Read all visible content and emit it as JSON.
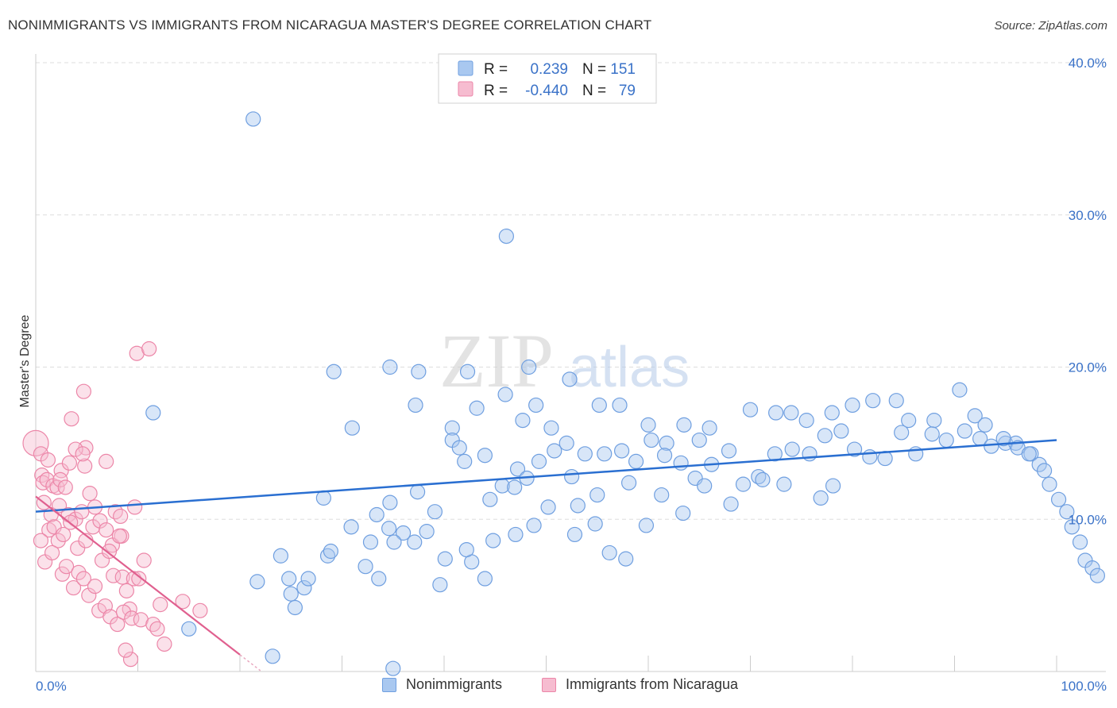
{
  "title": "NONIMMIGRANTS VS IMMIGRANTS FROM NICARAGUA MASTER'S DEGREE CORRELATION CHART",
  "source": "Source: ZipAtlas.com",
  "watermark": {
    "zip": "ZIP",
    "atlas": "atlas"
  },
  "colors": {
    "blue_fill": "#a9c8f0",
    "blue_stroke": "#6f9fe0",
    "blue_line": "#2a6fd1",
    "pink_fill": "#f6bcd0",
    "pink_stroke": "#ec86a8",
    "pink_line": "#e0608f",
    "grid": "#dddddd",
    "tick_text": "#3a72c8"
  },
  "legend": {
    "rows": [
      {
        "r_label": "R =",
        "r_value": "0.239",
        "n_label": "N =",
        "n_value": "151"
      },
      {
        "r_label": "R =",
        "r_value": "-0.440",
        "n_label": "N =",
        "n_value": "79"
      }
    ]
  },
  "bottom_legend": [
    "Nonimmigrants",
    "Immigrants from Nicaragua"
  ],
  "chart_data": {
    "type": "scatter",
    "title": "NONIMMIGRANTS VS IMMIGRANTS FROM NICARAGUA MASTER'S DEGREE CORRELATION CHART",
    "xlabel": "",
    "ylabel": "Master's Degree",
    "xlim": [
      0,
      100
    ],
    "ylim": [
      0,
      40
    ],
    "x_tick_labels": [
      "0.0%",
      "100.0%"
    ],
    "y_ticks": [
      10,
      20,
      30,
      40
    ],
    "y_tick_labels": [
      "10.0%",
      "20.0%",
      "30.0%",
      "40.0%"
    ],
    "grid": true,
    "series": [
      {
        "name": "Nonimmigrants",
        "r": 0.239,
        "n": 151,
        "trend": {
          "x": [
            0,
            100
          ],
          "y": [
            10.5,
            15.2
          ]
        },
        "points": [
          [
            21.3,
            36.3
          ],
          [
            46.1,
            28.6
          ],
          [
            11.5,
            17.0
          ],
          [
            29.2,
            19.7
          ],
          [
            34.7,
            20.0
          ],
          [
            37.5,
            19.7
          ],
          [
            42.3,
            19.7
          ],
          [
            48.3,
            20.0
          ],
          [
            52.3,
            19.2
          ],
          [
            31.0,
            16.0
          ],
          [
            37.2,
            17.5
          ],
          [
            40.8,
            16.0
          ],
          [
            43.2,
            17.3
          ],
          [
            46.0,
            18.2
          ],
          [
            47.7,
            16.5
          ],
          [
            49.0,
            17.5
          ],
          [
            50.5,
            16.0
          ],
          [
            52.0,
            15.0
          ],
          [
            55.2,
            17.5
          ],
          [
            57.2,
            17.5
          ],
          [
            60.0,
            16.2
          ],
          [
            61.8,
            15.0
          ],
          [
            63.5,
            16.2
          ],
          [
            65.0,
            15.2
          ],
          [
            66.0,
            16.0
          ],
          [
            70.0,
            17.2
          ],
          [
            72.5,
            17.0
          ],
          [
            74.0,
            17.0
          ],
          [
            75.5,
            16.5
          ],
          [
            78.0,
            17.0
          ],
          [
            80.0,
            17.5
          ],
          [
            82.0,
            17.8
          ],
          [
            84.3,
            17.8
          ],
          [
            85.5,
            16.5
          ],
          [
            88.0,
            16.5
          ],
          [
            90.5,
            18.5
          ],
          [
            92.0,
            16.8
          ],
          [
            93.0,
            16.2
          ],
          [
            95.0,
            15.0
          ],
          [
            96.0,
            15.0
          ],
          [
            97.5,
            14.3
          ],
          [
            98.3,
            13.6
          ],
          [
            99.3,
            12.3
          ],
          [
            100.2,
            11.3
          ],
          [
            101.0,
            10.5
          ],
          [
            101.5,
            9.5
          ],
          [
            102.3,
            8.5
          ],
          [
            102.8,
            7.3
          ],
          [
            103.5,
            6.8
          ],
          [
            104.0,
            6.3
          ],
          [
            40.8,
            15.2
          ],
          [
            41.5,
            14.7
          ],
          [
            42.0,
            13.8
          ],
          [
            44.0,
            14.2
          ],
          [
            45.7,
            12.2
          ],
          [
            47.2,
            13.3
          ],
          [
            48.1,
            12.7
          ],
          [
            49.3,
            13.8
          ],
          [
            50.8,
            14.5
          ],
          [
            52.5,
            12.8
          ],
          [
            53.8,
            14.3
          ],
          [
            55.7,
            14.3
          ],
          [
            57.4,
            14.5
          ],
          [
            58.8,
            13.8
          ],
          [
            60.3,
            15.2
          ],
          [
            61.6,
            14.2
          ],
          [
            63.2,
            13.7
          ],
          [
            64.6,
            12.7
          ],
          [
            66.2,
            13.6
          ],
          [
            67.9,
            14.5
          ],
          [
            69.3,
            12.3
          ],
          [
            70.8,
            12.8
          ],
          [
            72.4,
            14.3
          ],
          [
            74.1,
            14.6
          ],
          [
            75.8,
            14.3
          ],
          [
            77.3,
            15.5
          ],
          [
            78.9,
            15.8
          ],
          [
            80.2,
            14.6
          ],
          [
            81.7,
            14.1
          ],
          [
            83.2,
            14.0
          ],
          [
            84.8,
            15.7
          ],
          [
            86.2,
            14.3
          ],
          [
            87.8,
            15.6
          ],
          [
            89.2,
            15.2
          ],
          [
            91.0,
            15.8
          ],
          [
            92.5,
            15.3
          ],
          [
            93.6,
            14.8
          ],
          [
            94.8,
            15.3
          ],
          [
            96.2,
            14.7
          ],
          [
            97.3,
            14.3
          ],
          [
            98.8,
            13.2
          ],
          [
            71.2,
            12.6
          ],
          [
            73.3,
            12.3
          ],
          [
            78.1,
            12.2
          ],
          [
            76.9,
            11.4
          ],
          [
            68.1,
            11.0
          ],
          [
            65.5,
            12.2
          ],
          [
            63.4,
            10.4
          ],
          [
            61.3,
            11.6
          ],
          [
            58.1,
            12.4
          ],
          [
            55.0,
            11.6
          ],
          [
            53.1,
            10.9
          ],
          [
            50.2,
            10.8
          ],
          [
            46.9,
            12.1
          ],
          [
            44.5,
            11.3
          ],
          [
            37.4,
            11.8
          ],
          [
            34.7,
            11.1
          ],
          [
            33.4,
            10.3
          ],
          [
            28.2,
            11.4
          ],
          [
            38.3,
            9.2
          ],
          [
            39.1,
            10.5
          ],
          [
            36.0,
            9.1
          ],
          [
            34.6,
            9.4
          ],
          [
            30.9,
            9.5
          ],
          [
            32.8,
            8.5
          ],
          [
            28.6,
            7.6
          ],
          [
            28.9,
            7.9
          ],
          [
            24.0,
            7.6
          ],
          [
            26.3,
            5.5
          ],
          [
            26.7,
            6.1
          ],
          [
            25.0,
            5.1
          ],
          [
            25.4,
            4.2
          ],
          [
            32.3,
            6.9
          ],
          [
            33.6,
            6.1
          ],
          [
            39.6,
            5.7
          ],
          [
            42.7,
            7.2
          ],
          [
            44.0,
            6.1
          ],
          [
            47.0,
            9.0
          ],
          [
            48.8,
            9.6
          ],
          [
            52.8,
            9.0
          ],
          [
            54.8,
            9.7
          ],
          [
            56.2,
            7.8
          ],
          [
            57.8,
            7.4
          ],
          [
            59.8,
            9.6
          ],
          [
            37.1,
            8.5
          ],
          [
            35.1,
            8.5
          ],
          [
            21.7,
            5.9
          ],
          [
            24.8,
            6.1
          ],
          [
            15.0,
            2.8
          ],
          [
            23.2,
            1.0
          ],
          [
            35.0,
            0.2
          ],
          [
            42.2,
            8.0
          ],
          [
            40.1,
            7.4
          ],
          [
            44.8,
            8.6
          ]
        ]
      },
      {
        "name": "Immigrants from Nicaragua",
        "r": -0.44,
        "n": 79,
        "trend": {
          "x": [
            0,
            20
          ],
          "y": [
            11.5,
            1.1
          ]
        },
        "points": [
          [
            0.0,
            15.0
          ],
          [
            0.5,
            14.3
          ],
          [
            1.2,
            13.9
          ],
          [
            2.5,
            13.2
          ],
          [
            3.3,
            13.7
          ],
          [
            4.8,
            13.5
          ],
          [
            4.9,
            14.7
          ],
          [
            0.6,
            12.9
          ],
          [
            0.7,
            12.4
          ],
          [
            1.1,
            12.6
          ],
          [
            1.7,
            12.2
          ],
          [
            2.1,
            12.1
          ],
          [
            2.4,
            12.6
          ],
          [
            2.9,
            12.1
          ],
          [
            0.8,
            11.1
          ],
          [
            1.5,
            10.3
          ],
          [
            2.3,
            10.9
          ],
          [
            3.2,
            10.3
          ],
          [
            3.9,
            10.0
          ],
          [
            4.5,
            10.5
          ],
          [
            5.3,
            11.7
          ],
          [
            5.8,
            10.8
          ],
          [
            7.8,
            10.5
          ],
          [
            8.3,
            10.2
          ],
          [
            9.7,
            10.8
          ],
          [
            1.3,
            9.3
          ],
          [
            1.8,
            9.5
          ],
          [
            2.2,
            8.6
          ],
          [
            2.7,
            9.0
          ],
          [
            3.4,
            9.8
          ],
          [
            4.1,
            8.1
          ],
          [
            4.9,
            8.6
          ],
          [
            5.6,
            9.5
          ],
          [
            6.3,
            9.9
          ],
          [
            6.9,
            9.3
          ],
          [
            7.5,
            8.3
          ],
          [
            8.4,
            8.9
          ],
          [
            0.5,
            8.6
          ],
          [
            0.9,
            7.2
          ],
          [
            1.6,
            7.8
          ],
          [
            2.6,
            6.4
          ],
          [
            3.0,
            6.9
          ],
          [
            3.7,
            5.5
          ],
          [
            4.2,
            6.5
          ],
          [
            4.7,
            6.1
          ],
          [
            5.2,
            5.0
          ],
          [
            5.8,
            5.6
          ],
          [
            6.5,
            7.3
          ],
          [
            7.2,
            7.9
          ],
          [
            7.6,
            6.3
          ],
          [
            8.5,
            6.2
          ],
          [
            9.2,
            4.1
          ],
          [
            9.6,
            6.1
          ],
          [
            8.9,
            5.3
          ],
          [
            6.2,
            4.0
          ],
          [
            6.8,
            4.3
          ],
          [
            7.3,
            3.6
          ],
          [
            8.0,
            3.1
          ],
          [
            8.6,
            3.9
          ],
          [
            9.4,
            3.5
          ],
          [
            10.1,
            6.1
          ],
          [
            10.6,
            7.3
          ],
          [
            10.3,
            3.4
          ],
          [
            11.5,
            3.1
          ],
          [
            12.2,
            4.4
          ],
          [
            14.4,
            4.6
          ],
          [
            16.1,
            4.0
          ],
          [
            11.9,
            2.8
          ],
          [
            9.3,
            0.8
          ],
          [
            8.8,
            1.4
          ],
          [
            12.6,
            1.8
          ],
          [
            8.2,
            8.9
          ],
          [
            9.9,
            20.9
          ],
          [
            11.1,
            21.2
          ],
          [
            4.7,
            18.4
          ],
          [
            3.5,
            16.6
          ],
          [
            3.9,
            14.6
          ],
          [
            4.6,
            14.3
          ],
          [
            6.9,
            13.8
          ]
        ]
      }
    ]
  }
}
